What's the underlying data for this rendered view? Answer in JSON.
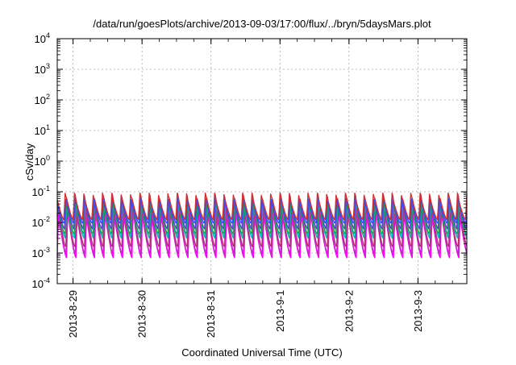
{
  "chart_data": {
    "type": "line",
    "title": "/data/run/goesPlots/archive/2013-09-03/17:00/flux/../bryn/5daysMars.plot",
    "xlabel": "Coordinated Universal Time (UTC)",
    "ylabel": "cSv/day",
    "y_scale": "log",
    "ylim": [
      0.0001,
      10000
    ],
    "y_ticks": [
      {
        "base": "10",
        "exp": "-4",
        "value": 0.0001
      },
      {
        "base": "10",
        "exp": "-3",
        "value": 0.001
      },
      {
        "base": "10",
        "exp": "-2",
        "value": 0.01
      },
      {
        "base": "10",
        "exp": "-1",
        "value": 0.1
      },
      {
        "base": "10",
        "exp": "0",
        "value": 1
      },
      {
        "base": "10",
        "exp": "1",
        "value": 10
      },
      {
        "base": "10",
        "exp": "2",
        "value": 100
      },
      {
        "base": "10",
        "exp": "3",
        "value": 1000
      },
      {
        "base": "10",
        "exp": "4",
        "value": 10000
      }
    ],
    "x_range": [
      "2013-08-28 18:30",
      "2013-09-03 17:00"
    ],
    "x_ticks": [
      "2013-8-29",
      "2013-8-30",
      "2013-8-31",
      "2013-9-1",
      "2013-9-2",
      "2013-9-3"
    ],
    "grid": true,
    "legend": "none",
    "oscillation": {
      "cycle_hours": 3.25,
      "approximate_series_ranges": [
        {
          "color": "#ff00ff",
          "min": 0.0007,
          "max": 0.02
        },
        {
          "color": "#cc22cc",
          "min": 0.0009,
          "max": 0.025
        },
        {
          "color": "#b03070",
          "min": 0.0015,
          "max": 0.04
        },
        {
          "color": "#00bcbc",
          "min": 0.003,
          "max": 0.045
        },
        {
          "color": "#20a050",
          "min": 0.004,
          "max": 0.05
        },
        {
          "color": "#6040d0",
          "min": 0.006,
          "max": 0.06
        },
        {
          "color": "#3050ff",
          "min": 0.009,
          "max": 0.075
        },
        {
          "color": "#d03030",
          "min": 0.012,
          "max": 0.09
        }
      ]
    }
  }
}
